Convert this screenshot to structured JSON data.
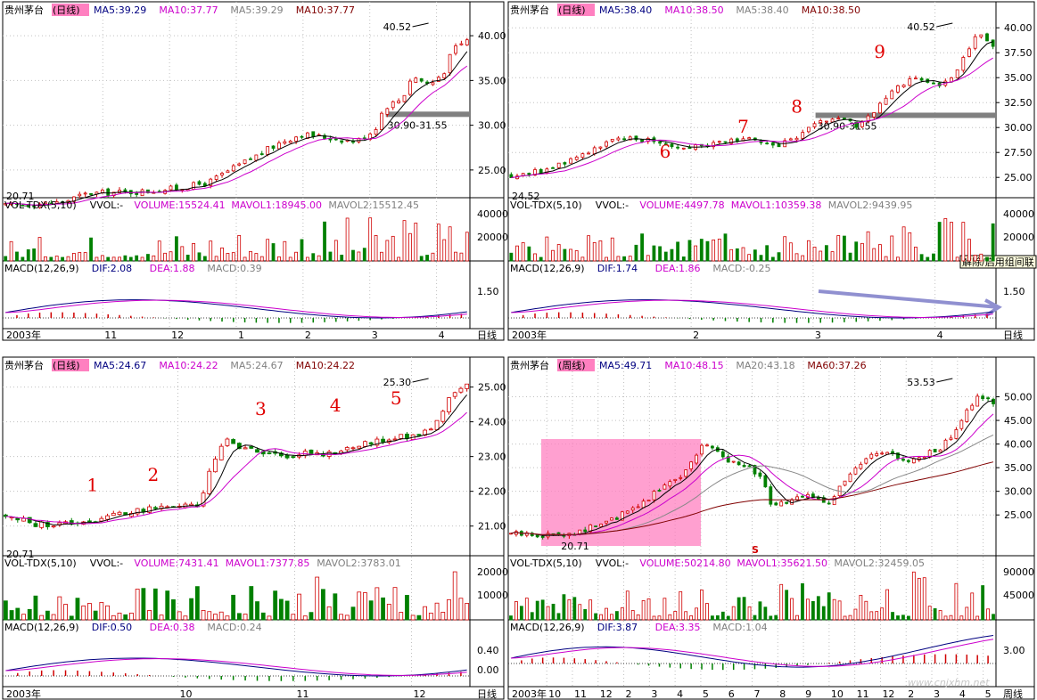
{
  "watermark": "www.cnjxhm.net",
  "colors": {
    "up": "#d00000",
    "down": "#008000",
    "ma5": "#000000",
    "ma10": "#cc00cc",
    "ma20": "#888888",
    "ma60": "#800000",
    "grid": "#c0c0c0",
    "highlight": "#ff80c0",
    "gray_band": "#808080",
    "arrow": "#9090d0"
  },
  "chart_data": [
    {
      "type": "candlestick",
      "panel": "top-left",
      "title": {
        "name": "贵州茅台",
        "period": "(日线)",
        "ma_a": "MA5:39.29",
        "ma_b": "MA10:37.77",
        "ma_c": "MA5:39.29",
        "ma_d": "MA10:37.77"
      },
      "y_ticks": [
        "40.00",
        "35.00",
        "30.00",
        "25.00"
      ],
      "ylim": [
        22.5,
        42
      ],
      "high_label": "40.52",
      "low_label": "20.71",
      "band_label": "30.90-31.55",
      "band": [
        30.9,
        31.55
      ],
      "price_path": [
        [
          0,
          21
        ],
        [
          0.12,
          21.4
        ],
        [
          0.18,
          22.4
        ],
        [
          0.3,
          22.6
        ],
        [
          0.38,
          23
        ],
        [
          0.44,
          23.6
        ],
        [
          0.48,
          24.8
        ],
        [
          0.54,
          26.5
        ],
        [
          0.6,
          28.2
        ],
        [
          0.64,
          29
        ],
        [
          0.7,
          28.6
        ],
        [
          0.76,
          28.2
        ],
        [
          0.8,
          29.5
        ],
        [
          0.82,
          32
        ],
        [
          0.86,
          33
        ],
        [
          0.88,
          35.5
        ],
        [
          0.92,
          34.5
        ],
        [
          0.95,
          36
        ],
        [
          0.97,
          38.5
        ],
        [
          1.0,
          39.5
        ]
      ],
      "volume": {
        "label": "VOL-TDX(5,10)",
        "name": "VVOL:-",
        "volume": "VOLUME:15524.41",
        "mavol1": "MAVOL1:18945.00",
        "mavol2": "MAVOL2:15512.45",
        "ticks": [
          "40000",
          "20000"
        ]
      },
      "macd": {
        "label": "MACD(12,26,9)",
        "dif": "DIF:2.08",
        "dea": "DEA:1.88",
        "macd": "MACD:0.39",
        "ticks": [
          "1.50"
        ]
      },
      "x_ticks": [
        "2003年",
        "11",
        "12",
        "1",
        "2",
        "3",
        "4"
      ],
      "period_label": "日线"
    },
    {
      "type": "candlestick",
      "panel": "top-right",
      "title": {
        "name": "贵州茅台",
        "period": "(日线)",
        "ma_a": "MA5:38.40",
        "ma_b": "MA10:38.50",
        "ma_c": "MA5:38.40",
        "ma_d": "MA10:38.50"
      },
      "y_ticks": [
        "40.00",
        "37.50",
        "35.00",
        "32.50",
        "30.00",
        "27.50",
        "25.00"
      ],
      "ylim": [
        23.5,
        41
      ],
      "high_label": "40.52",
      "low_label": "24.52",
      "band_label": "30.90-31.55",
      "band": [
        30.9,
        31.55
      ],
      "wave_labels": [
        "6",
        "7",
        "8",
        "9"
      ],
      "tooltip": "解除/启用组间联",
      "price_path": [
        [
          0,
          25.2
        ],
        [
          0.08,
          25.8
        ],
        [
          0.14,
          27.2
        ],
        [
          0.2,
          28.6
        ],
        [
          0.28,
          28.9
        ],
        [
          0.34,
          28.1
        ],
        [
          0.42,
          28.3
        ],
        [
          0.48,
          29
        ],
        [
          0.54,
          28
        ],
        [
          0.6,
          29.2
        ],
        [
          0.64,
          30.5
        ],
        [
          0.68,
          31
        ],
        [
          0.72,
          30
        ],
        [
          0.76,
          32
        ],
        [
          0.8,
          34
        ],
        [
          0.84,
          35.2
        ],
        [
          0.88,
          34.2
        ],
        [
          0.9,
          34.4
        ],
        [
          0.92,
          35.5
        ],
        [
          0.95,
          38
        ],
        [
          0.97,
          39.8
        ],
        [
          1.0,
          38
        ]
      ],
      "volume": {
        "label": "VOL-TDX(5,10)",
        "name": "VVOL:-",
        "volume": "VOLUME:4497.78",
        "mavol1": "MAVOL1:10359.38",
        "mavol2": "MAVOL2:9439.95",
        "ticks": [
          "40000",
          "20000"
        ]
      },
      "macd": {
        "label": "MACD(12,26,9)",
        "dif": "DIF:1.74",
        "dea": "DEA:1.86",
        "macd": "MACD:-0.25",
        "ticks": [
          "1.50"
        ]
      },
      "x_ticks": [
        "2003年",
        "2",
        "3",
        "4"
      ],
      "period_label": "日线"
    },
    {
      "type": "candlestick",
      "panel": "bottom-left",
      "title": {
        "name": "贵州茅台",
        "period": "(日线)",
        "ma_a": "MA5:24.67",
        "ma_b": "MA10:24.22",
        "ma_c": "MA5:24.67",
        "ma_d": "MA10:24.22"
      },
      "y_ticks": [
        "25.00",
        "24.00",
        "23.00",
        "22.00",
        "21.00"
      ],
      "ylim": [
        20.3,
        25.4
      ],
      "high_label": "25.30",
      "low_label": "20.71",
      "wave_labels": [
        "1",
        "2",
        "3",
        "4",
        "5"
      ],
      "price_path": [
        [
          0,
          21.3
        ],
        [
          0.06,
          21.05
        ],
        [
          0.12,
          21.05
        ],
        [
          0.2,
          21.2
        ],
        [
          0.26,
          21.4
        ],
        [
          0.32,
          21.5
        ],
        [
          0.38,
          21.6
        ],
        [
          0.42,
          21.5
        ],
        [
          0.44,
          22.6
        ],
        [
          0.48,
          23.5
        ],
        [
          0.52,
          23.2
        ],
        [
          0.58,
          23.0
        ],
        [
          0.64,
          23.1
        ],
        [
          0.7,
          23.1
        ],
        [
          0.76,
          23.3
        ],
        [
          0.82,
          23.5
        ],
        [
          0.88,
          23.6
        ],
        [
          0.92,
          23.8
        ],
        [
          0.96,
          24.6
        ],
        [
          1.0,
          25.1
        ]
      ],
      "volume": {
        "label": "VOL-TDX(5,10)",
        "name": "VVOL:-",
        "volume": "VOLUME:7431.41",
        "mavol1": "MAVOL1:7377.85",
        "mavol2": "MAVOL2:3783.01",
        "ticks": [
          "20000",
          "10000"
        ]
      },
      "macd": {
        "label": "MACD(12,26,9)",
        "dif": "DIF:0.50",
        "dea": "DEA:0.38",
        "macd": "MACD:0.24",
        "ticks": [
          "0.40",
          "0.00"
        ]
      },
      "x_ticks": [
        "2003年",
        "10",
        "11",
        "12"
      ],
      "period_label": "日线"
    },
    {
      "type": "candlestick",
      "panel": "bottom-right",
      "title": {
        "name": "贵州茅台",
        "period": "(周线)",
        "ma_a": "MA5:49.71",
        "ma_b": "MA10:48.15",
        "ma_c": "MA20:43.18",
        "ma_d": "MA60:37.26"
      },
      "y_ticks": [
        "50.00",
        "45.00",
        "40.00",
        "35.00",
        "30.00",
        "25.00"
      ],
      "ylim": [
        17.5,
        55
      ],
      "high_label": "53.53",
      "low_label": "20.71",
      "marker": "S",
      "price_path": [
        [
          0,
          21
        ],
        [
          0.08,
          20.7
        ],
        [
          0.14,
          21.5
        ],
        [
          0.2,
          23.5
        ],
        [
          0.26,
          26.5
        ],
        [
          0.3,
          30
        ],
        [
          0.36,
          34
        ],
        [
          0.4,
          40.5
        ],
        [
          0.44,
          37
        ],
        [
          0.48,
          36
        ],
        [
          0.52,
          33
        ],
        [
          0.54,
          26.5
        ],
        [
          0.58,
          28
        ],
        [
          0.62,
          29
        ],
        [
          0.66,
          28
        ],
        [
          0.7,
          33
        ],
        [
          0.74,
          37
        ],
        [
          0.78,
          38
        ],
        [
          0.82,
          36
        ],
        [
          0.86,
          37.5
        ],
        [
          0.9,
          40
        ],
        [
          0.94,
          46
        ],
        [
          0.97,
          50
        ],
        [
          1.0,
          49
        ]
      ],
      "volume": {
        "label": "VOL-TDX(5,10)",
        "name": "VVOL:-",
        "volume": "VOLUME:50214.80",
        "mavol1": "MAVOL1:35621.50",
        "mavol2": "MAVOL2:32459.05",
        "ticks": [
          "90000",
          "45000"
        ]
      },
      "macd": {
        "label": "MACD(12,26,9)",
        "dif": "DIF:3.87",
        "dea": "DEA:3.35",
        "macd": "MACD:1.04",
        "ticks": [
          "3.00"
        ]
      },
      "x_ticks": [
        "2003年",
        "10",
        "11",
        "12",
        "2",
        "3",
        "4",
        "5",
        "6",
        "7",
        "8",
        "9",
        "10",
        "11",
        "12",
        "2",
        "3",
        "4",
        "5"
      ],
      "period_label": "周线"
    }
  ]
}
